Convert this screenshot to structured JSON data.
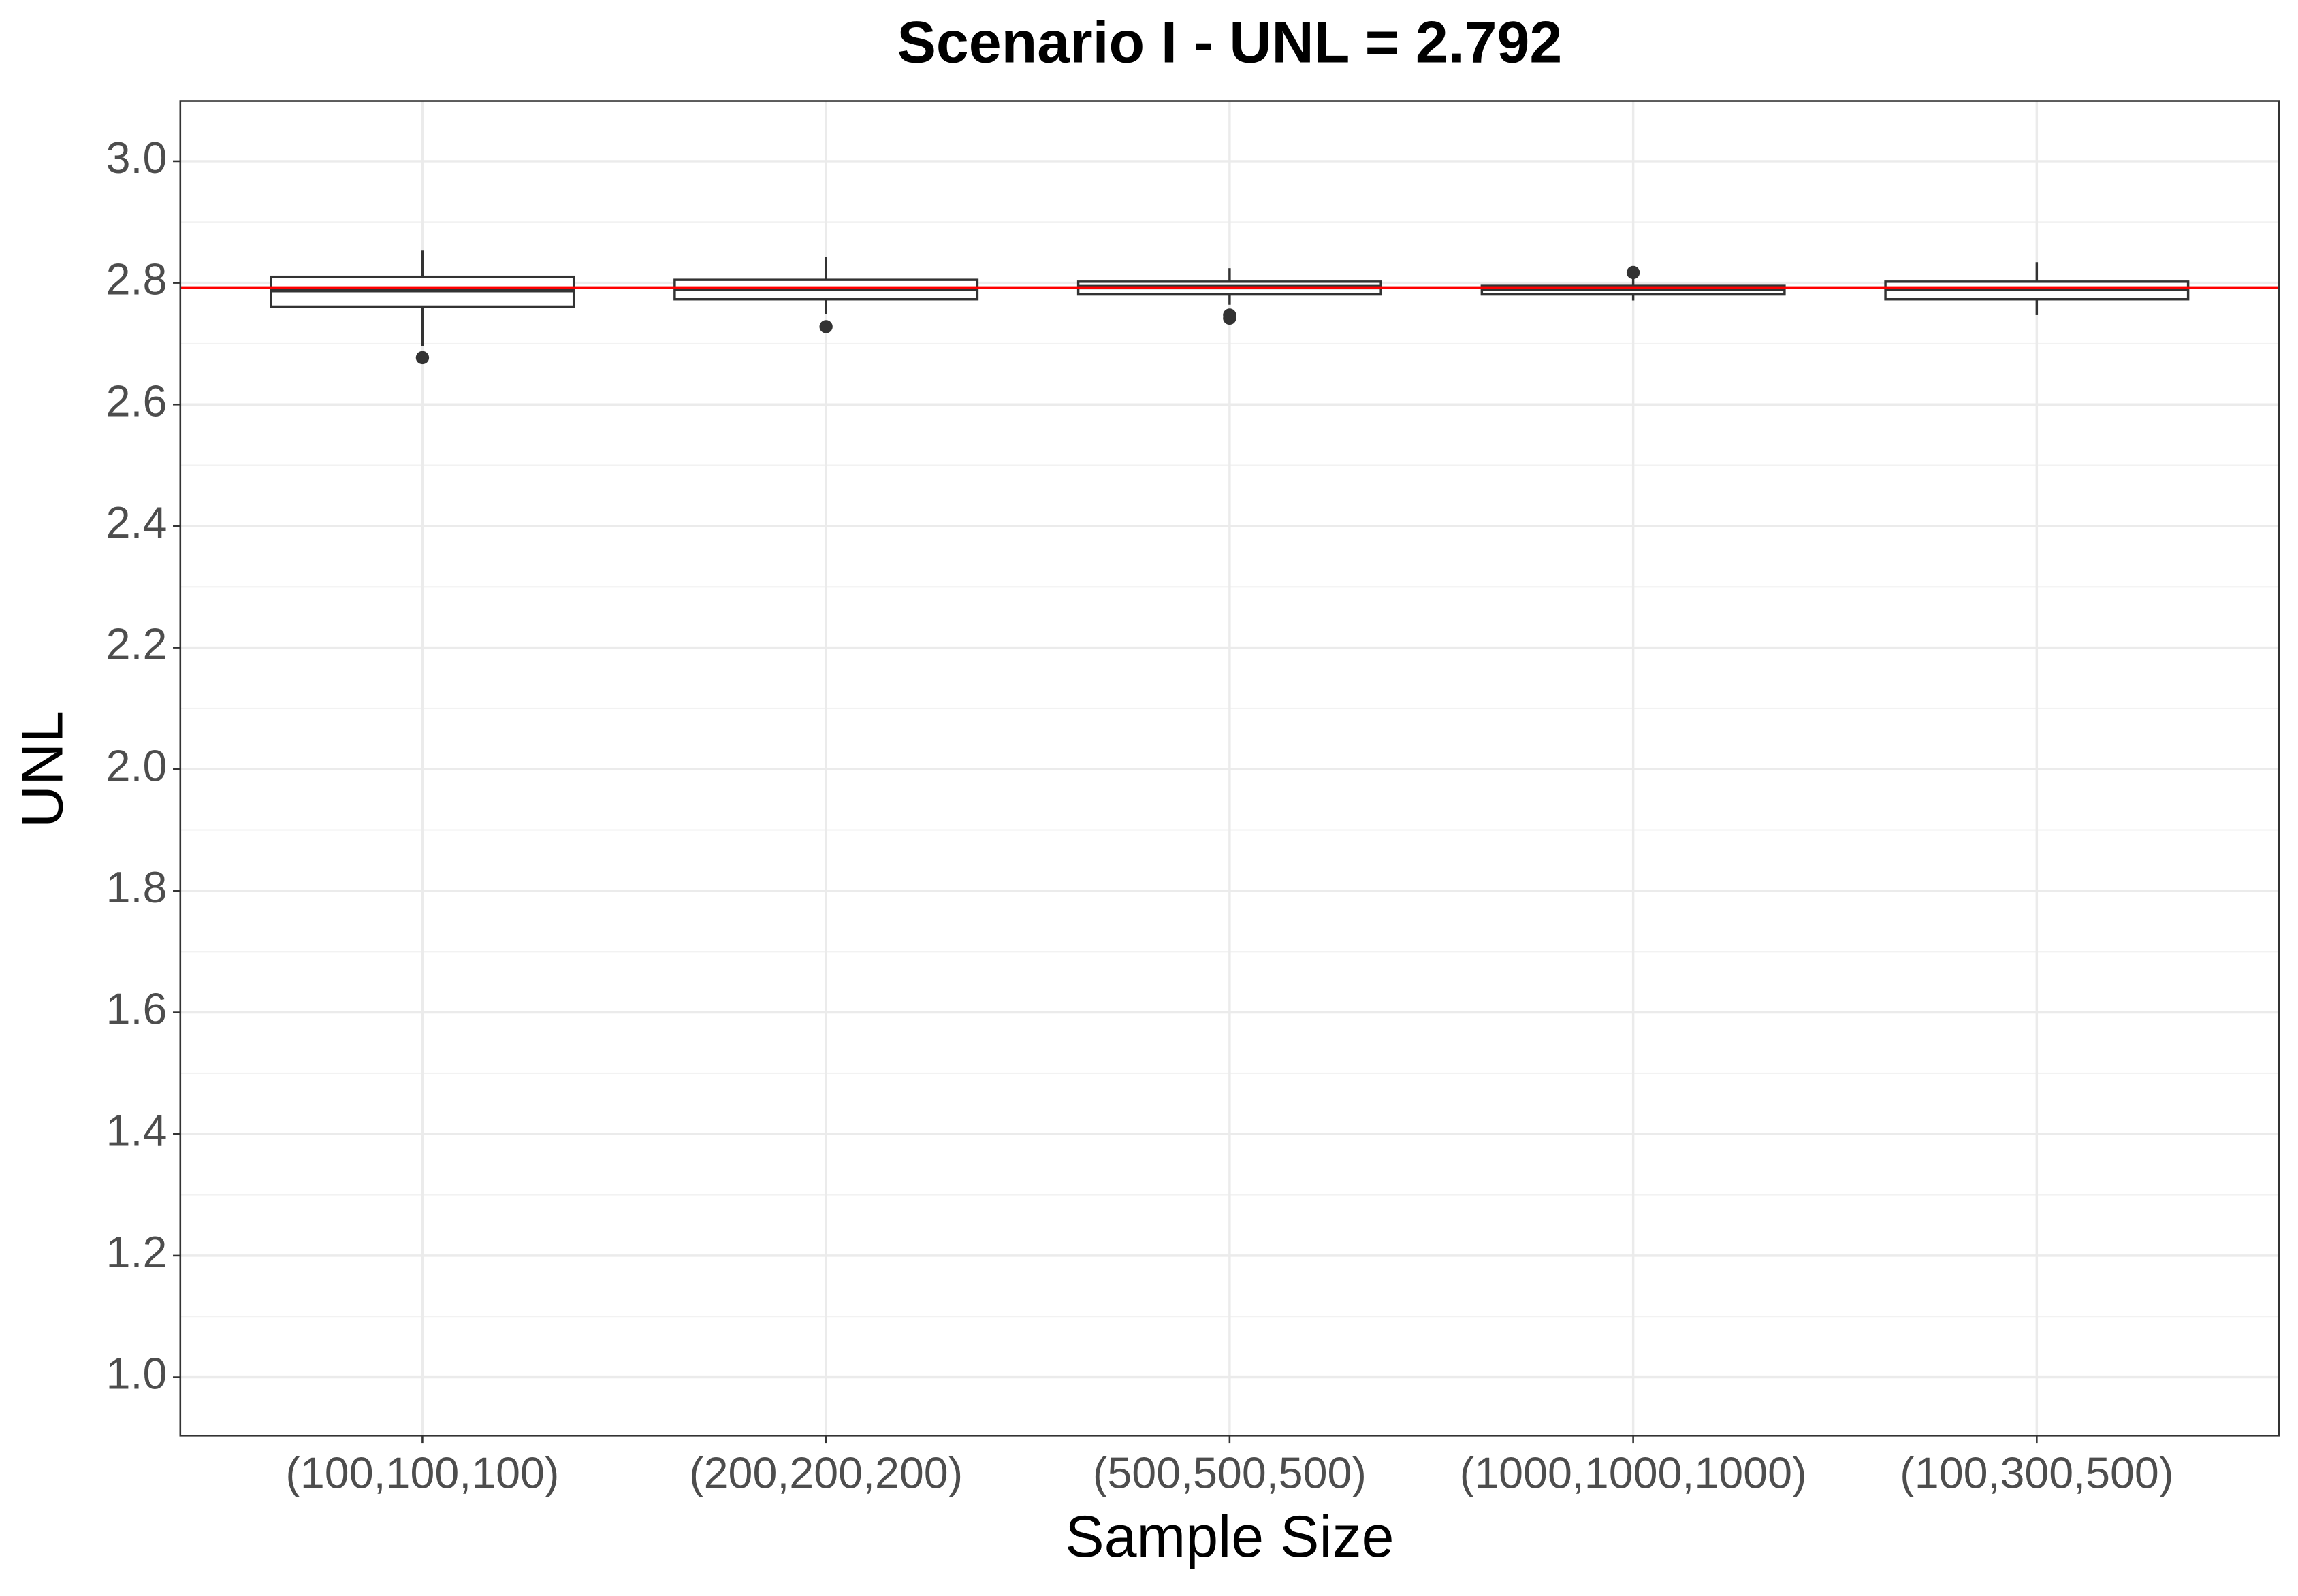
{
  "chart_data": {
    "type": "box",
    "title": "Scenario I - UNL = 2.792",
    "x_label": "Sample Size",
    "y_label": "UNL",
    "categories": [
      "(100,100,100)",
      "(200,200,200)",
      "(500,500,500)",
      "(1000,1000,1000)",
      "(100,300,500)"
    ],
    "boxes": [
      {
        "min": 2.696,
        "q1": 2.761,
        "median": 2.788,
        "q3": 2.81,
        "max": 2.853,
        "outliers": [
          2.677
        ]
      },
      {
        "min": 2.749,
        "q1": 2.773,
        "median": 2.79,
        "q3": 2.805,
        "max": 2.843,
        "outliers": [
          2.728
        ]
      },
      {
        "min": 2.764,
        "q1": 2.781,
        "median": 2.793,
        "q3": 2.802,
        "max": 2.824,
        "outliers": [
          2.747,
          2.742
        ]
      },
      {
        "min": 2.771,
        "q1": 2.781,
        "median": 2.79,
        "q3": 2.795,
        "max": 2.812,
        "outliers": [
          2.817
        ]
      },
      {
        "min": 2.747,
        "q1": 2.773,
        "median": 2.79,
        "q3": 2.802,
        "max": 2.834,
        "outliers": []
      }
    ],
    "reference_line": {
      "value": 2.792,
      "color": "#ff0000"
    },
    "box_color": "#333333",
    "ylim": [
      0.904,
      3.099
    ],
    "yticks": [
      {
        "value": 1,
        "label": "1.0"
      },
      1.2,
      1.4,
      1.6,
      1.8,
      {
        "value": 2,
        "label": "2.0"
      },
      2.2,
      2.4,
      2.6,
      2.8,
      {
        "value": 3,
        "label": "3.0"
      }
    ],
    "grid": true
  }
}
